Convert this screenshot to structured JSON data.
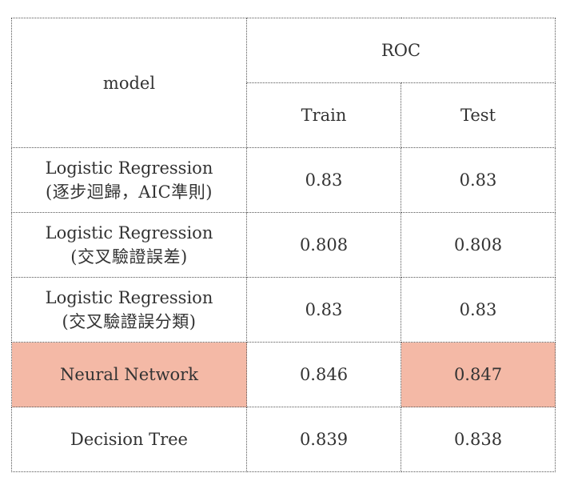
{
  "header": {
    "model_label": "model",
    "metric_label": "ROC",
    "train_label": "Train",
    "test_label": "Test"
  },
  "rows": [
    {
      "model_line1": "Logistic Regression",
      "model_line2": "(逐步迴歸，AIC準則)",
      "train": "0.83",
      "test": "0.83"
    },
    {
      "model_line1": "Logistic Regression",
      "model_line2": "(交叉驗證誤差)",
      "train": "0.808",
      "test": "0.808"
    },
    {
      "model_line1": "Logistic Regression",
      "model_line2": "(交叉驗證誤分類)",
      "train": "0.83",
      "test": "0.83"
    },
    {
      "model_line1": "Neural Network",
      "model_line2": "",
      "train": "0.846",
      "test": "0.847"
    },
    {
      "model_line1": "Decision Tree",
      "model_line2": "",
      "train": "0.839",
      "test": "0.838"
    }
  ],
  "highlight_color": "#f4b9a6"
}
